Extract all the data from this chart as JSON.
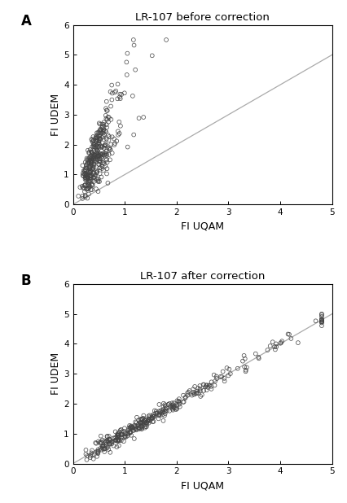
{
  "title_A": "LR-107 before correction",
  "title_B": "LR-107 after correction",
  "xlabel": "FI UQAM",
  "ylabel": "FI UDEM",
  "label_A": "A",
  "label_B": "B",
  "xlim": [
    0,
    5
  ],
  "ylim": [
    0,
    6
  ],
  "xticks": [
    0,
    1,
    2,
    3,
    4,
    5
  ],
  "yticks": [
    0,
    1,
    2,
    3,
    4,
    5,
    6
  ],
  "ytick_labels": [
    "0",
    "1",
    "2",
    "3",
    "4",
    "5",
    "6"
  ],
  "xtick_labels": [
    "0",
    "1",
    "2",
    "3",
    "4",
    "5"
  ],
  "marker_size": 12,
  "line_color": "#aaaaaa",
  "background": "#ffffff",
  "seed": 42,
  "n_points": 350
}
